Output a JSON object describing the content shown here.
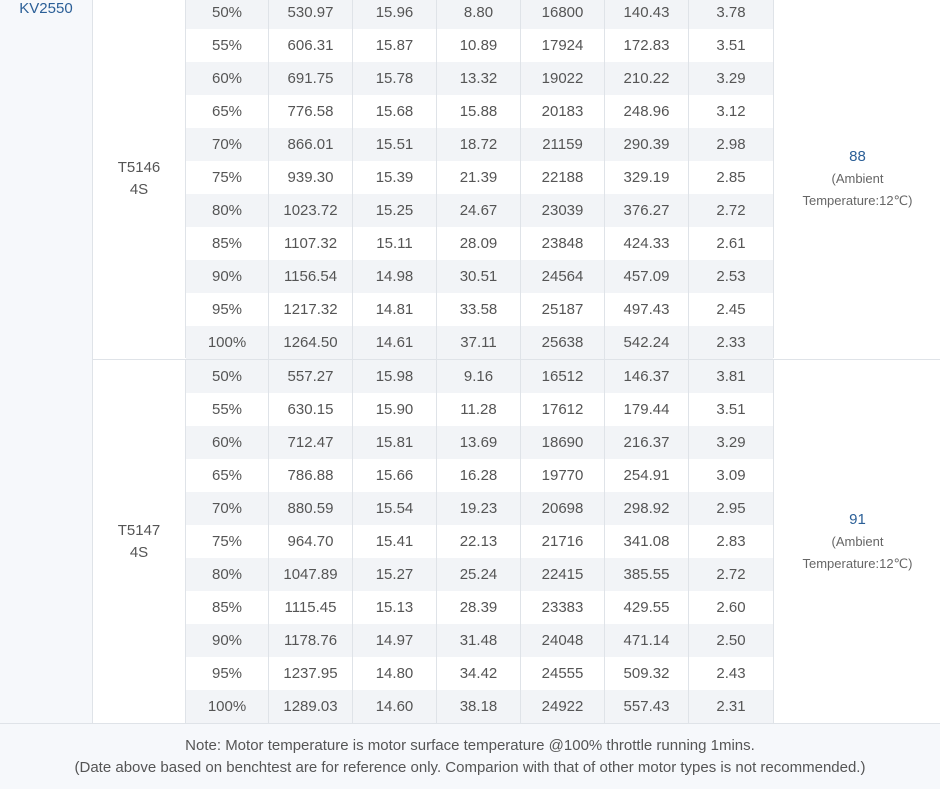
{
  "motor": "KV2550",
  "groups": [
    {
      "prop": "T5146",
      "cells": "4S",
      "temp_value": "88",
      "temp_note_1": "(Ambient",
      "temp_note_2": "Temperature:12℃)",
      "rows": [
        [
          "50%",
          "530.97",
          "15.96",
          "8.80",
          "16800",
          "140.43",
          "3.78"
        ],
        [
          "55%",
          "606.31",
          "15.87",
          "10.89",
          "17924",
          "172.83",
          "3.51"
        ],
        [
          "60%",
          "691.75",
          "15.78",
          "13.32",
          "19022",
          "210.22",
          "3.29"
        ],
        [
          "65%",
          "776.58",
          "15.68",
          "15.88",
          "20183",
          "248.96",
          "3.12"
        ],
        [
          "70%",
          "866.01",
          "15.51",
          "18.72",
          "21159",
          "290.39",
          "2.98"
        ],
        [
          "75%",
          "939.30",
          "15.39",
          "21.39",
          "22188",
          "329.19",
          "2.85"
        ],
        [
          "80%",
          "1023.72",
          "15.25",
          "24.67",
          "23039",
          "376.27",
          "2.72"
        ],
        [
          "85%",
          "1107.32",
          "15.11",
          "28.09",
          "23848",
          "424.33",
          "2.61"
        ],
        [
          "90%",
          "1156.54",
          "14.98",
          "30.51",
          "24564",
          "457.09",
          "2.53"
        ],
        [
          "95%",
          "1217.32",
          "14.81",
          "33.58",
          "25187",
          "497.43",
          "2.45"
        ],
        [
          "100%",
          "1264.50",
          "14.61",
          "37.11",
          "25638",
          "542.24",
          "2.33"
        ]
      ]
    },
    {
      "prop": "T5147",
      "cells": "4S",
      "temp_value": "91",
      "temp_note_1": "(Ambient",
      "temp_note_2": "Temperature:12℃)",
      "rows": [
        [
          "50%",
          "557.27",
          "15.98",
          "9.16",
          "16512",
          "146.37",
          "3.81"
        ],
        [
          "55%",
          "630.15",
          "15.90",
          "11.28",
          "17612",
          "179.44",
          "3.51"
        ],
        [
          "60%",
          "712.47",
          "15.81",
          "13.69",
          "18690",
          "216.37",
          "3.29"
        ],
        [
          "65%",
          "786.88",
          "15.66",
          "16.28",
          "19770",
          "254.91",
          "3.09"
        ],
        [
          "70%",
          "880.59",
          "15.54",
          "19.23",
          "20698",
          "298.92",
          "2.95"
        ],
        [
          "75%",
          "964.70",
          "15.41",
          "22.13",
          "21716",
          "341.08",
          "2.83"
        ],
        [
          "80%",
          "1047.89",
          "15.27",
          "25.24",
          "22415",
          "385.55",
          "2.72"
        ],
        [
          "85%",
          "1115.45",
          "15.13",
          "28.39",
          "23383",
          "429.55",
          "2.60"
        ],
        [
          "90%",
          "1178.76",
          "14.97",
          "31.48",
          "24048",
          "471.14",
          "2.50"
        ],
        [
          "95%",
          "1237.95",
          "14.80",
          "34.42",
          "24555",
          "509.32",
          "2.43"
        ],
        [
          "100%",
          "1289.03",
          "14.60",
          "38.18",
          "24922",
          "557.43",
          "2.31"
        ]
      ]
    }
  ],
  "footer": {
    "line1": "Note: Motor temperature is motor surface temperature @100% throttle running 1mins.",
    "line2": "(Date above based on benchtest are for reference only. Comparion with that of other motor types is not recommended.)"
  }
}
